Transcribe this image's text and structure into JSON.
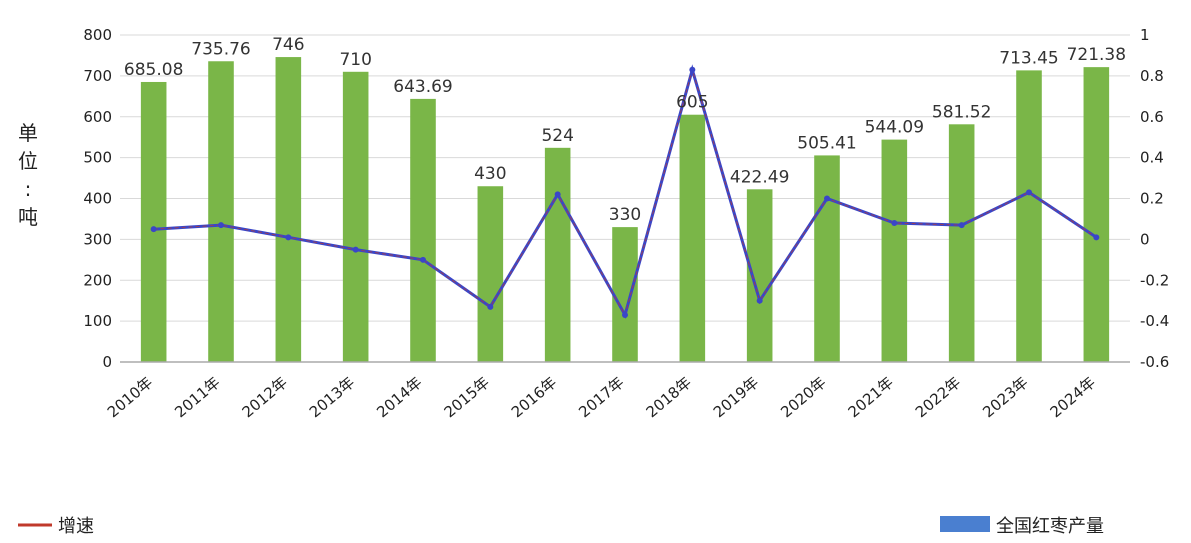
{
  "chart_data": [
    {
      "type": "bar",
      "categories": [
        "2010年",
        "2011年",
        "2012年",
        "2013年",
        "2014年",
        "2015年",
        "2016年",
        "2017年",
        "2018年",
        "2019年",
        "2020年",
        "2021年",
        "2022年",
        "2023年",
        "2024年"
      ],
      "ylabel_chars": [
        "单",
        "位",
        ":",
        "吨"
      ],
      "ylim": [
        0,
        800
      ],
      "left_ticks": [
        "0",
        "100",
        "200",
        "300",
        "400",
        "500",
        "600",
        "700",
        "800"
      ],
      "right_ylim": [
        -0.6,
        1.0
      ],
      "right_ticks": [
        "-0.6",
        "-0.4",
        "-0.2",
        "0",
        "0.2",
        "0.4",
        "0.6",
        "0.8",
        "1"
      ],
      "series": [
        {
          "name": "全国红枣产量",
          "values": [
            685.08,
            735.76,
            746,
            710,
            643.69,
            430,
            524,
            330,
            605,
            422.49,
            505.41,
            544.09,
            581.52,
            713.45,
            721.38
          ],
          "labels": [
            "685.08",
            "735.76",
            "746",
            "710",
            "643.69",
            "430",
            "524",
            "330",
            "605",
            "422.49",
            "505.41",
            "544.09",
            "581.52",
            "713.45",
            "721.38"
          ]
        },
        {
          "name": "增速",
          "axis": "right",
          "values": [
            0.05,
            0.07,
            0.01,
            -0.05,
            -0.1,
            -0.33,
            0.22,
            -0.37,
            0.83,
            -0.3,
            0.2,
            0.08,
            0.07,
            0.23,
            0.01
          ]
        }
      ],
      "legend_position": "bottom",
      "colors": {
        "bars": "#7ab648",
        "line": "#3a46c8",
        "line_red": "#c0392b",
        "axis": "#aaaaaa",
        "grid": "#d9d9d9"
      }
    }
  ]
}
